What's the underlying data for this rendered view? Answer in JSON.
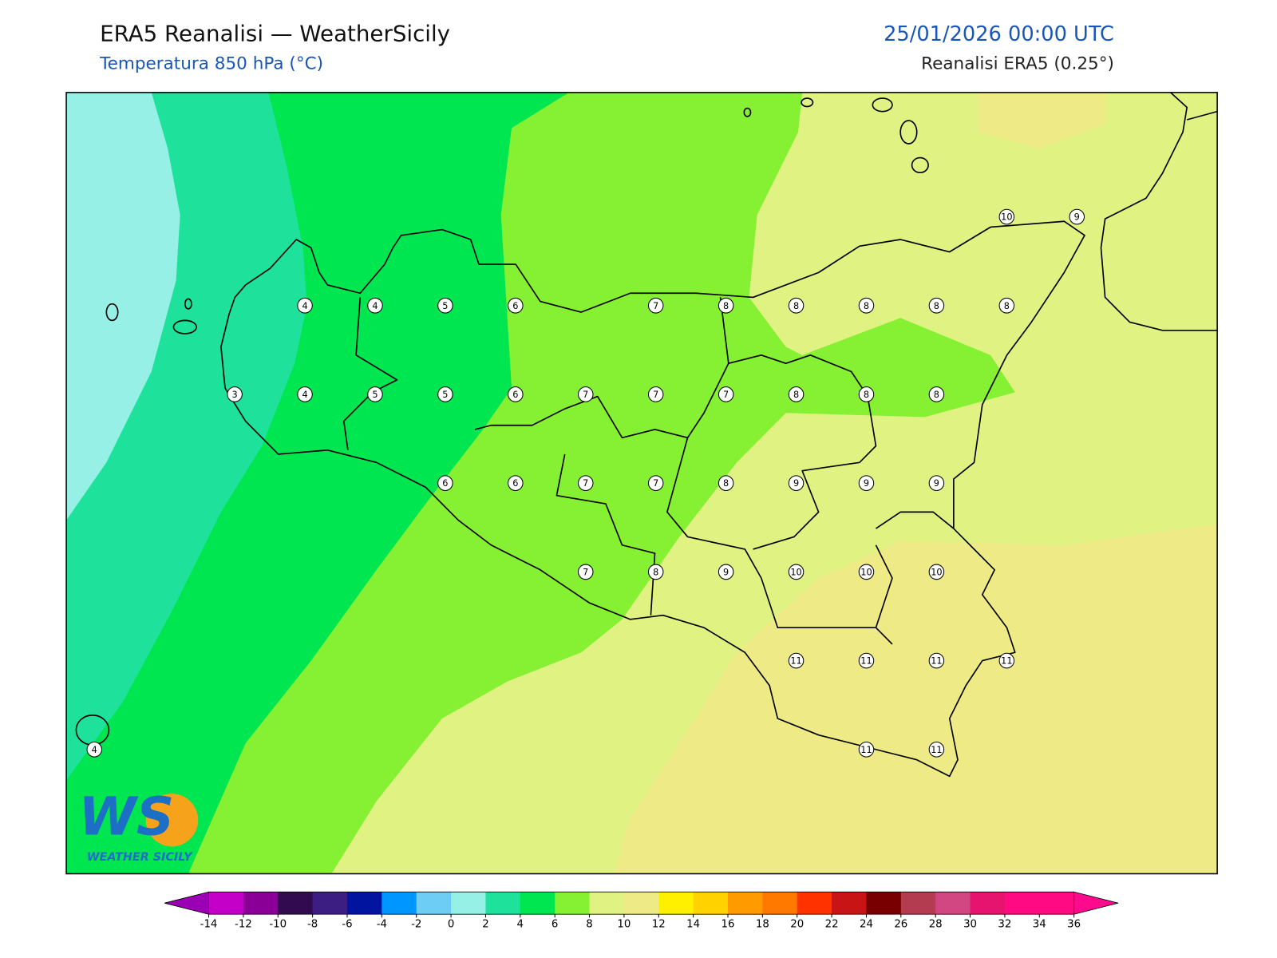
{
  "header": {
    "title": "ERA5 Reanalisi — WeatherSicily",
    "subtitle": "Temperatura 850 hPa (°C)",
    "date": "25/01/2026 00:00 UTC",
    "source": "Reanalisi ERA5 (0.25°)"
  },
  "map": {
    "extent": [
      11.9,
      16.0,
      36.4,
      38.6
    ]
  },
  "grid": {
    "lons": [
      12.0,
      12.25,
      12.5,
      12.75,
      13.0,
      13.25,
      13.5,
      13.75,
      14.0,
      14.25,
      14.5,
      14.75,
      15.0,
      15.25,
      15.5
    ],
    "lats": [
      38.25,
      38.0,
      37.75,
      37.5,
      37.25,
      37.0,
      36.75
    ],
    "values": [
      [
        null,
        null,
        null,
        null,
        null,
        null,
        null,
        null,
        null,
        null,
        null,
        null,
        null,
        10,
        9
      ],
      [
        null,
        null,
        null,
        4,
        4,
        5,
        6,
        null,
        7,
        8,
        8,
        8,
        8,
        8,
        null
      ],
      [
        null,
        null,
        3,
        4,
        5,
        5,
        6,
        7,
        7,
        7,
        8,
        8,
        8,
        null,
        null
      ],
      [
        null,
        null,
        null,
        null,
        null,
        6,
        6,
        7,
        7,
        8,
        9,
        9,
        9,
        null,
        null
      ],
      [
        null,
        null,
        null,
        null,
        null,
        null,
        null,
        7,
        8,
        9,
        10,
        10,
        10,
        null,
        null
      ],
      [
        null,
        null,
        null,
        null,
        null,
        null,
        null,
        null,
        null,
        null,
        11,
        11,
        11,
        11,
        null
      ],
      [
        4,
        null,
        null,
        null,
        null,
        null,
        null,
        null,
        null,
        null,
        null,
        11,
        11,
        null,
        null
      ]
    ]
  },
  "colorbar": {
    "ticks": [
      -14,
      -12,
      -10,
      -8,
      -6,
      -4,
      -2,
      0,
      2,
      4,
      6,
      8,
      10,
      12,
      14,
      16,
      18,
      20,
      22,
      24,
      26,
      28,
      30,
      32,
      34,
      36
    ],
    "colors": [
      "#c400c8",
      "#8a0096",
      "#320a50",
      "#3c1e82",
      "#0014a0",
      "#0096ff",
      "#6ecdf5",
      "#96f0e6",
      "#1ee29b",
      "#00e650",
      "#86f032",
      "#e0f282",
      "#eeeb86",
      "#fff000",
      "#ffd200",
      "#ff9b00",
      "#ff7800",
      "#ff3200",
      "#c81414",
      "#780000",
      "#b43c50",
      "#d24682",
      "#e6146e",
      "#ff0a82",
      "#ff0a82"
    ],
    "under": "#9c00b4",
    "over": "#ff0a8c"
  },
  "logo": {
    "mark": "WS",
    "text": "WEATHER SICILY"
  }
}
